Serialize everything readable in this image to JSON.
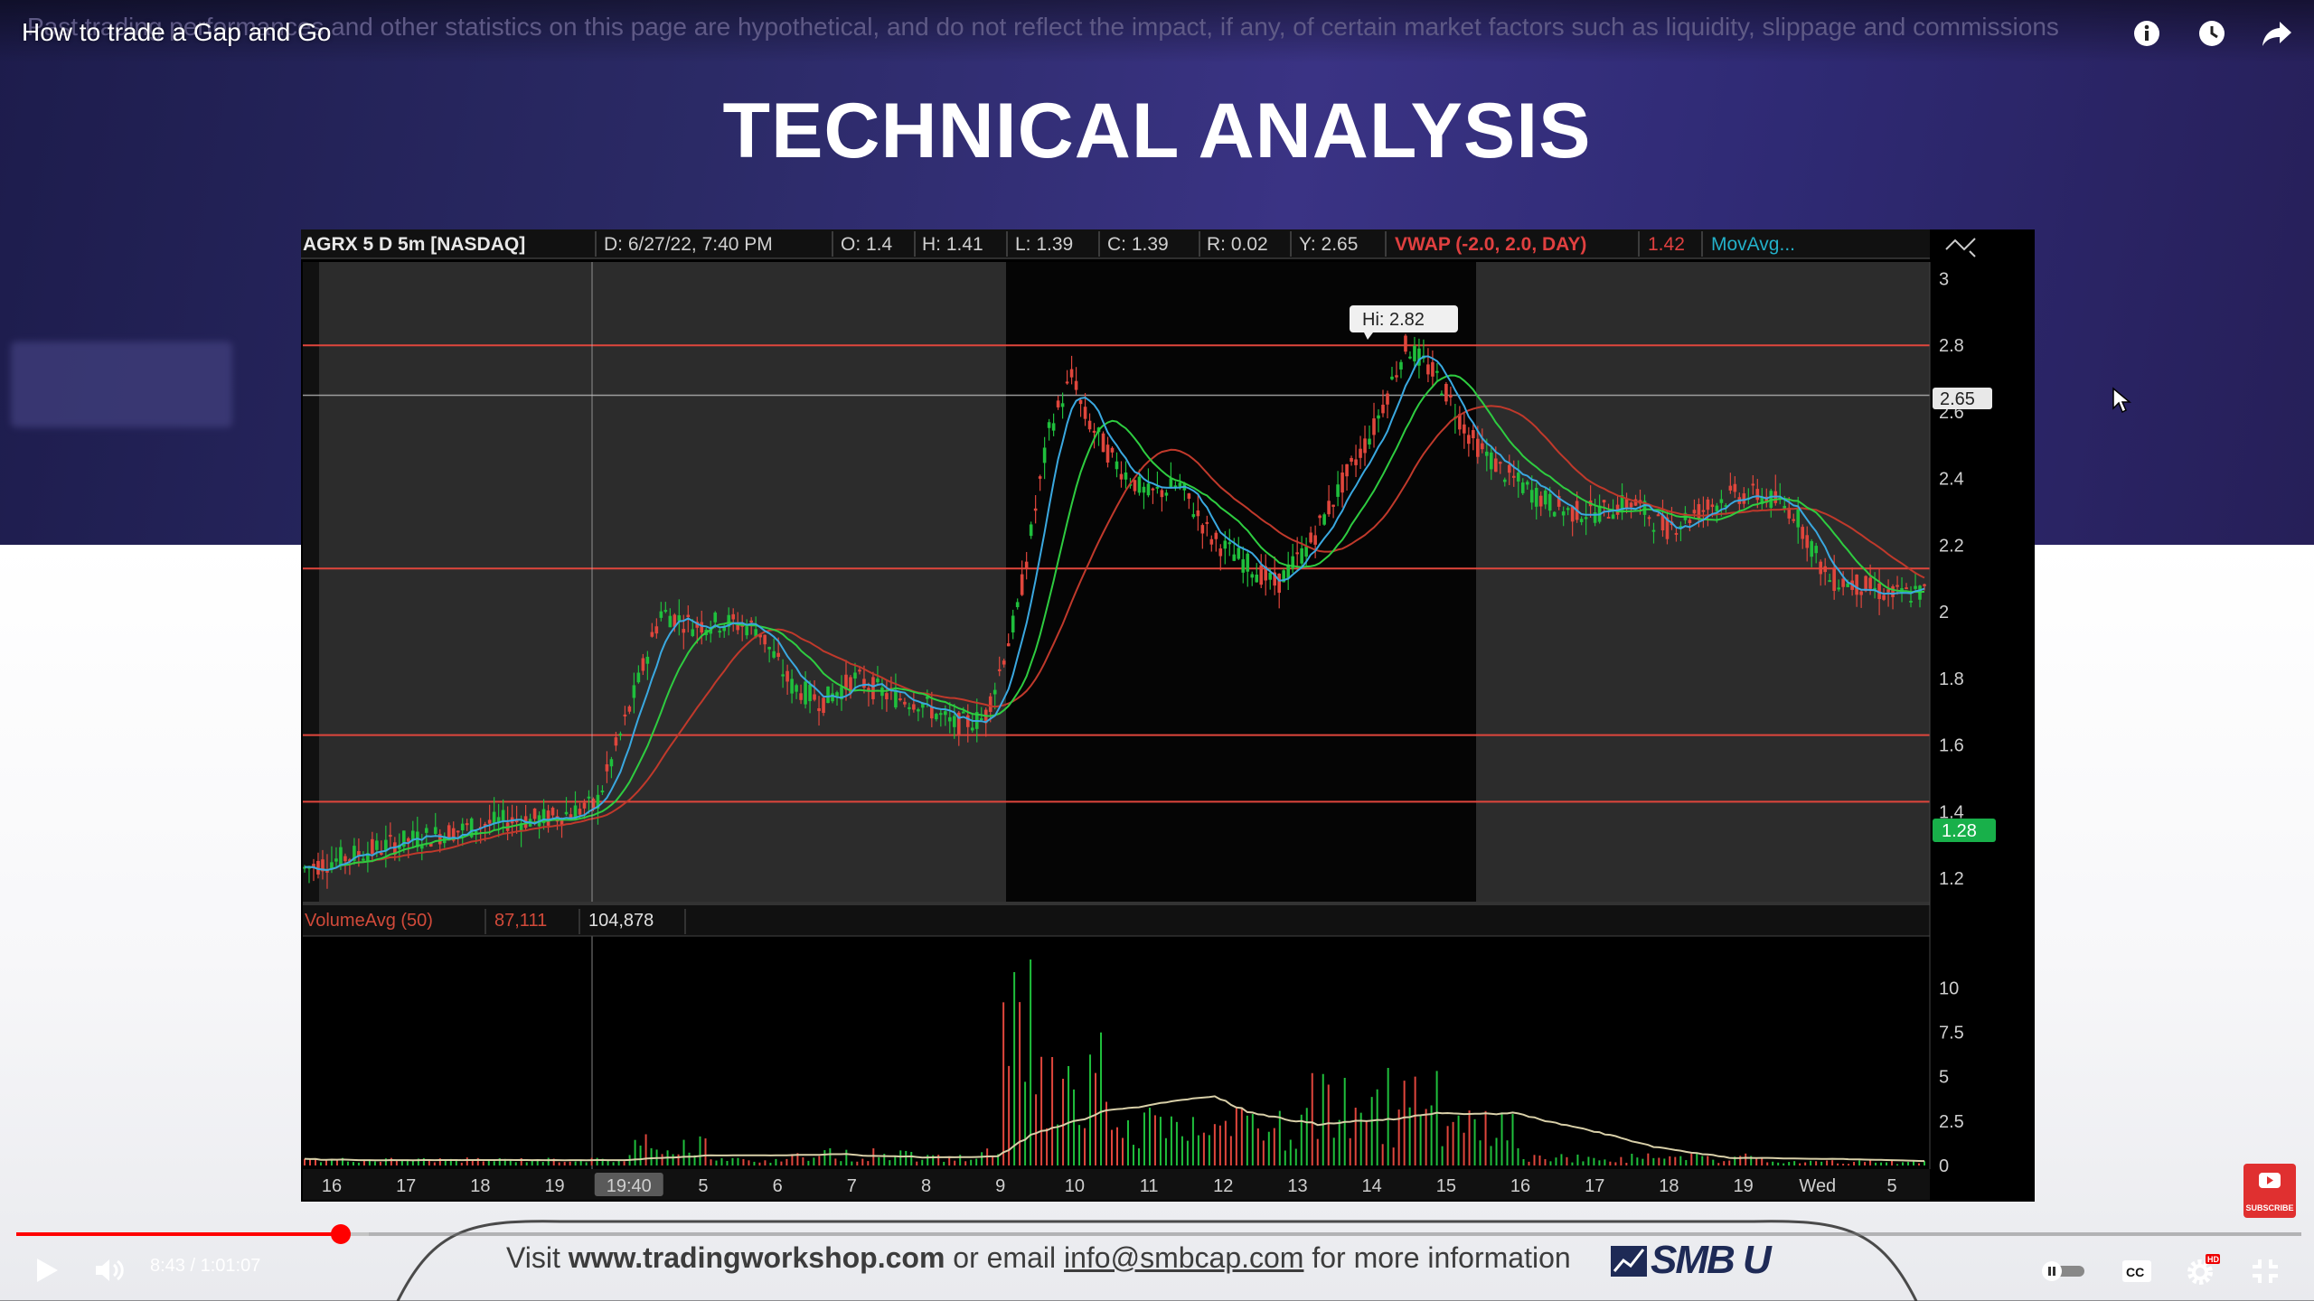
{
  "video": {
    "title": "How to trade a Gap and Go",
    "disclaimer": "Past trading performances and other statistics on this page are hypothetical, and do not reflect the impact, if any, of certain market factors such as liquidity, slippage and commissions",
    "heading": "TECHNICAL ANALYSIS",
    "time": "8:43 / 1:01:07",
    "progress_fraction": 0.142
  },
  "top_icons": [
    "info-icon",
    "watch-later-icon",
    "share-icon"
  ],
  "player_controls": [
    "play-icon",
    "volume-icon",
    "autoplay-toggle-icon",
    "captions-icon",
    "settings-icon",
    "exit-fullscreen-icon"
  ],
  "footer": {
    "visit": "Visit",
    "url": "www.tradingworkshop.com",
    "or_email": "or email",
    "email": "info@smbcap.com",
    "tail": "for more information",
    "logo": "SMB U"
  },
  "subscribe": {
    "label": "SUBSCRIBE",
    "badge": "HD"
  },
  "chart_header": {
    "symbol": "AGRX 5 D 5m [NASDAQ]",
    "date": "D: 6/27/22, 7:40 PM",
    "open": "O: 1.4",
    "high": "H: 1.41",
    "low": "L: 1.39",
    "close": "C: 1.39",
    "range": "R: 0.02",
    "y": "Y: 2.65",
    "vwap": "VWAP (-2.0, 2.0, DAY)",
    "vwap_value": "1.42",
    "movavg": "MovAvg..."
  },
  "chart_data": {
    "type": "line",
    "title": "AGRX 5 D 5m [NASDAQ]",
    "price_axis": {
      "ticks": [
        3,
        2.8,
        2.6,
        2.4,
        2.2,
        2,
        1.8,
        1.6,
        1.4,
        1.2
      ],
      "ylim": [
        1.13,
        3.05
      ]
    },
    "hi_label": "Hi: 2.82",
    "price_marker_white": "2.65",
    "price_marker_green": "1.28",
    "horizontal_levels": [
      2.8,
      2.13,
      1.63,
      1.43
    ],
    "price_series": {
      "x": [
        0,
        0.03,
        0.06,
        0.09,
        0.12,
        0.15,
        0.18,
        0.2,
        0.22,
        0.24,
        0.26,
        0.28,
        0.3,
        0.32,
        0.34,
        0.36,
        0.38,
        0.4,
        0.42,
        0.44,
        0.46,
        0.475,
        0.48,
        0.5,
        0.52,
        0.54,
        0.56,
        0.58,
        0.6,
        0.62,
        0.64,
        0.66,
        0.68,
        0.7,
        0.72,
        0.74,
        0.76,
        0.78,
        0.8,
        0.82,
        0.84,
        0.86,
        0.88,
        0.9,
        0.92,
        0.94,
        0.96,
        0.98,
        1.0
      ],
      "values": [
        1.23,
        1.27,
        1.31,
        1.34,
        1.37,
        1.38,
        1.42,
        1.7,
        2.0,
        1.96,
        1.97,
        1.95,
        1.78,
        1.73,
        1.8,
        1.75,
        1.73,
        1.66,
        1.68,
        2.0,
        2.55,
        2.72,
        2.6,
        2.45,
        2.35,
        2.38,
        2.22,
        2.15,
        2.08,
        2.2,
        2.38,
        2.55,
        2.8,
        2.7,
        2.52,
        2.42,
        2.35,
        2.3,
        2.3,
        2.33,
        2.25,
        2.3,
        2.35,
        2.35,
        2.3,
        2.1,
        2.08,
        2.05,
        2.06
      ]
    },
    "volume_panel": {
      "label": "VolumeAvg (50)",
      "avg": "87,111",
      "value": "104,878",
      "ticks": [
        10,
        7.5,
        5,
        2.5,
        0
      ]
    },
    "x_ticks": [
      "16",
      "17",
      "18",
      "19",
      "19:40",
      "5",
      "6",
      "7",
      "8",
      "9",
      "10",
      "11",
      "12",
      "13",
      "14",
      "15",
      "16",
      "17",
      "18",
      "19",
      "Wed",
      "5"
    ]
  }
}
